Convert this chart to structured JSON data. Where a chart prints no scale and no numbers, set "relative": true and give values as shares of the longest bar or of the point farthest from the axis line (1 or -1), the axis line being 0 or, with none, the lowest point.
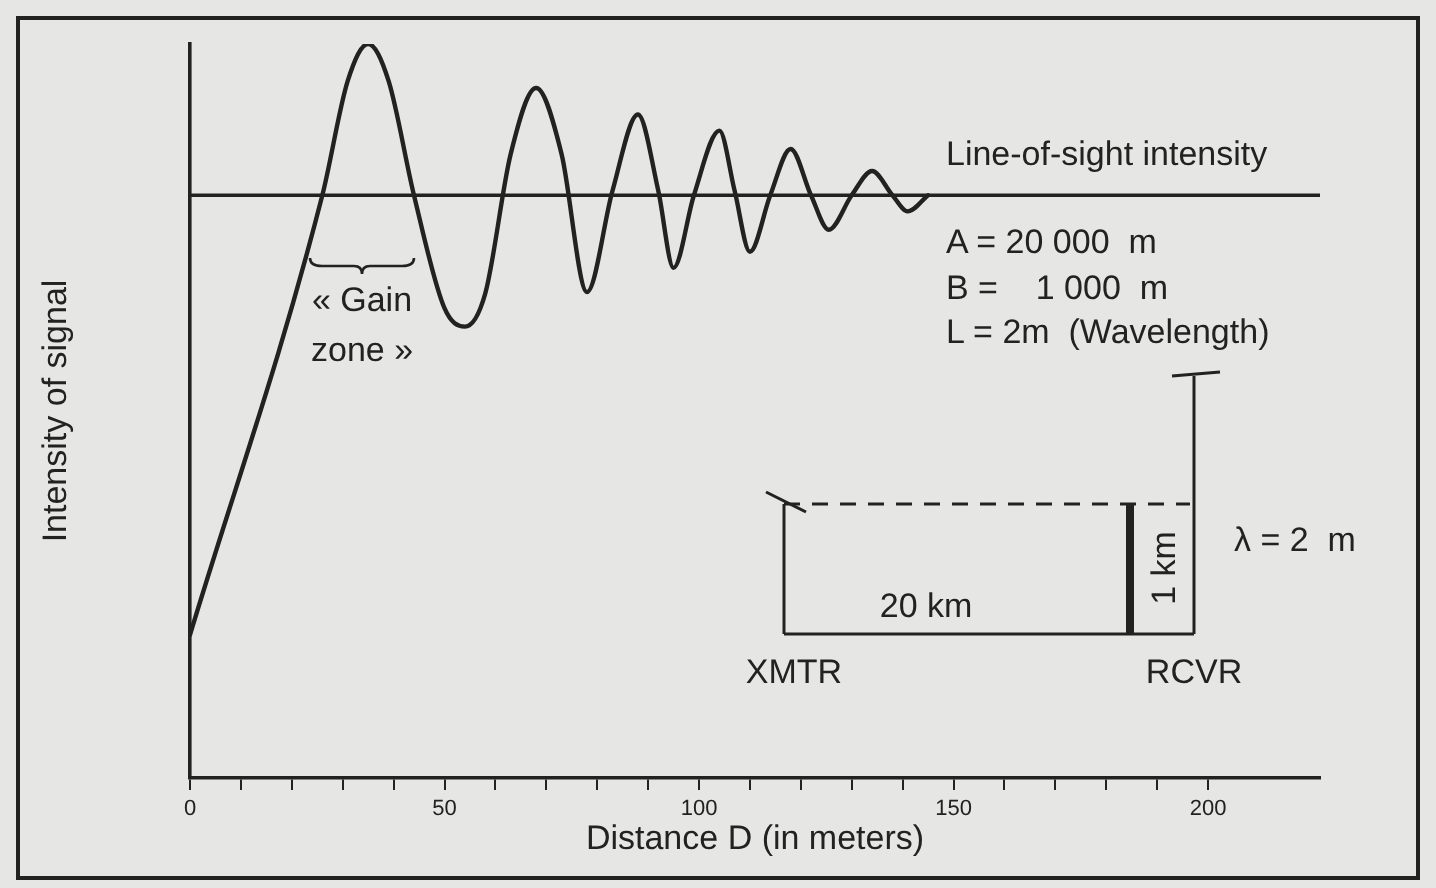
{
  "chart_data": {
    "type": "line",
    "relative": true,
    "xlabel": "Distance D (in meters)",
    "ylabel": "Intensity of signal",
    "xlim": [
      0,
      222
    ],
    "xticks": [
      0,
      {
        "value": 10,
        "label": null
      },
      {
        "value": 20,
        "label": null
      },
      {
        "value": 30,
        "label": null
      },
      {
        "value": 40,
        "label": null
      },
      50,
      {
        "value": 60,
        "label": null
      },
      {
        "value": 70,
        "label": null
      },
      {
        "value": 80,
        "label": null
      },
      {
        "value": 90,
        "label": null
      },
      100,
      {
        "value": 110,
        "label": null
      },
      {
        "value": 120,
        "label": null
      },
      {
        "value": 130,
        "label": null
      },
      {
        "value": 140,
        "label": null
      },
      150,
      {
        "value": 160,
        "label": null
      },
      {
        "value": 170,
        "label": null
      },
      {
        "value": 180,
        "label": null
      },
      {
        "value": 190,
        "label": null
      },
      200
    ],
    "series": [
      {
        "color": "#222222",
        "x": [
          0,
          26,
          31,
          35,
          39,
          44,
          50,
          54,
          58,
          63,
          68,
          73,
          78,
          83,
          88,
          92,
          95,
          99,
          104,
          107,
          110,
          114,
          118,
          122,
          125.5,
          130,
          134,
          138,
          141,
          145
        ],
        "values": [
          0.195,
          0.794,
          0.95,
          1,
          0.95,
          0.794,
          0.64,
          0.615,
          0.66,
          0.85,
          0.94,
          0.85,
          0.662,
          0.8,
          0.904,
          0.8,
          0.695,
          0.794,
          0.882,
          0.8,
          0.717,
          0.794,
          0.857,
          0.794,
          0.747,
          0.794,
          0.827,
          0.794,
          0.772,
          0.794
        ]
      }
    ],
    "ref_lines": [
      {
        "axis": "y",
        "value": 0.794,
        "label": "Line-of-sight intensity",
        "color": "#222222"
      }
    ],
    "annotations": [
      "« Gain zone »",
      "A = 20 000  m",
      "B =    1 000  m",
      "L = 2m  (Wavelength)",
      "XMTR",
      "20 km",
      "1 km",
      "RCVR",
      "λ = 2  m"
    ],
    "marker": "none",
    "line_style": "solid",
    "grid": false,
    "legend": false
  }
}
